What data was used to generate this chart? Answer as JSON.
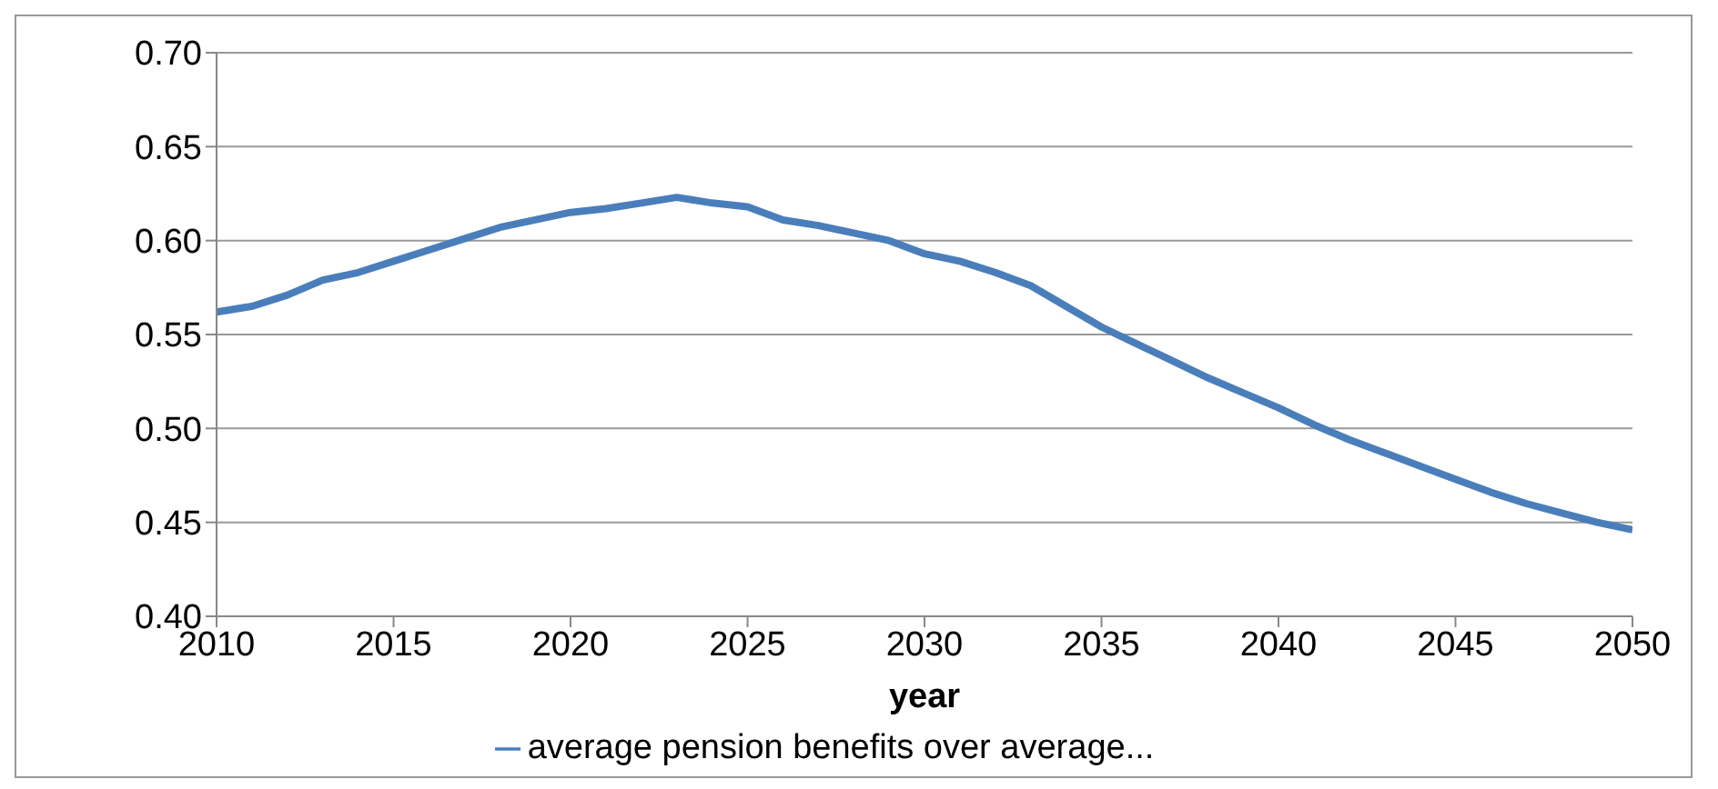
{
  "chart_data": {
    "type": "line",
    "xlabel": "year",
    "x": [
      2010,
      2011,
      2012,
      2013,
      2014,
      2015,
      2016,
      2017,
      2018,
      2019,
      2020,
      2021,
      2022,
      2023,
      2024,
      2025,
      2026,
      2027,
      2028,
      2029,
      2030,
      2031,
      2032,
      2033,
      2034,
      2035,
      2036,
      2037,
      2038,
      2039,
      2040,
      2041,
      2042,
      2043,
      2044,
      2045,
      2046,
      2047,
      2048,
      2049,
      2050
    ],
    "series": [
      {
        "name": "average pension benefits over average...",
        "color": "#4a7ebb",
        "values": [
          0.562,
          0.565,
          0.571,
          0.579,
          0.583,
          0.589,
          0.595,
          0.601,
          0.607,
          0.611,
          0.615,
          0.617,
          0.62,
          0.623,
          0.62,
          0.618,
          0.611,
          0.608,
          0.604,
          0.6,
          0.593,
          0.589,
          0.583,
          0.576,
          0.565,
          0.554,
          0.545,
          0.536,
          0.527,
          0.519,
          0.511,
          0.502,
          0.494,
          0.487,
          0.48,
          0.473,
          0.466,
          0.46,
          0.455,
          0.45,
          0.446
        ]
      }
    ],
    "xlim": [
      2010,
      2050
    ],
    "xticks": [
      2010,
      2015,
      2020,
      2025,
      2030,
      2035,
      2040,
      2045,
      2050
    ],
    "ylim": [
      0.4,
      0.7
    ],
    "yticks": [
      {
        "value": 0.4,
        "label": "0.40"
      },
      {
        "value": 0.45,
        "label": "0.45"
      },
      {
        "value": 0.5,
        "label": "0.50"
      },
      {
        "value": 0.55,
        "label": "0.55"
      },
      {
        "value": 0.6,
        "label": "0.60"
      },
      {
        "value": 0.65,
        "label": "0.65"
      },
      {
        "value": 0.7,
        "label": "0.70"
      }
    ],
    "grid": "y",
    "legend": "bottom",
    "marker": "none",
    "line_style": "solid"
  }
}
